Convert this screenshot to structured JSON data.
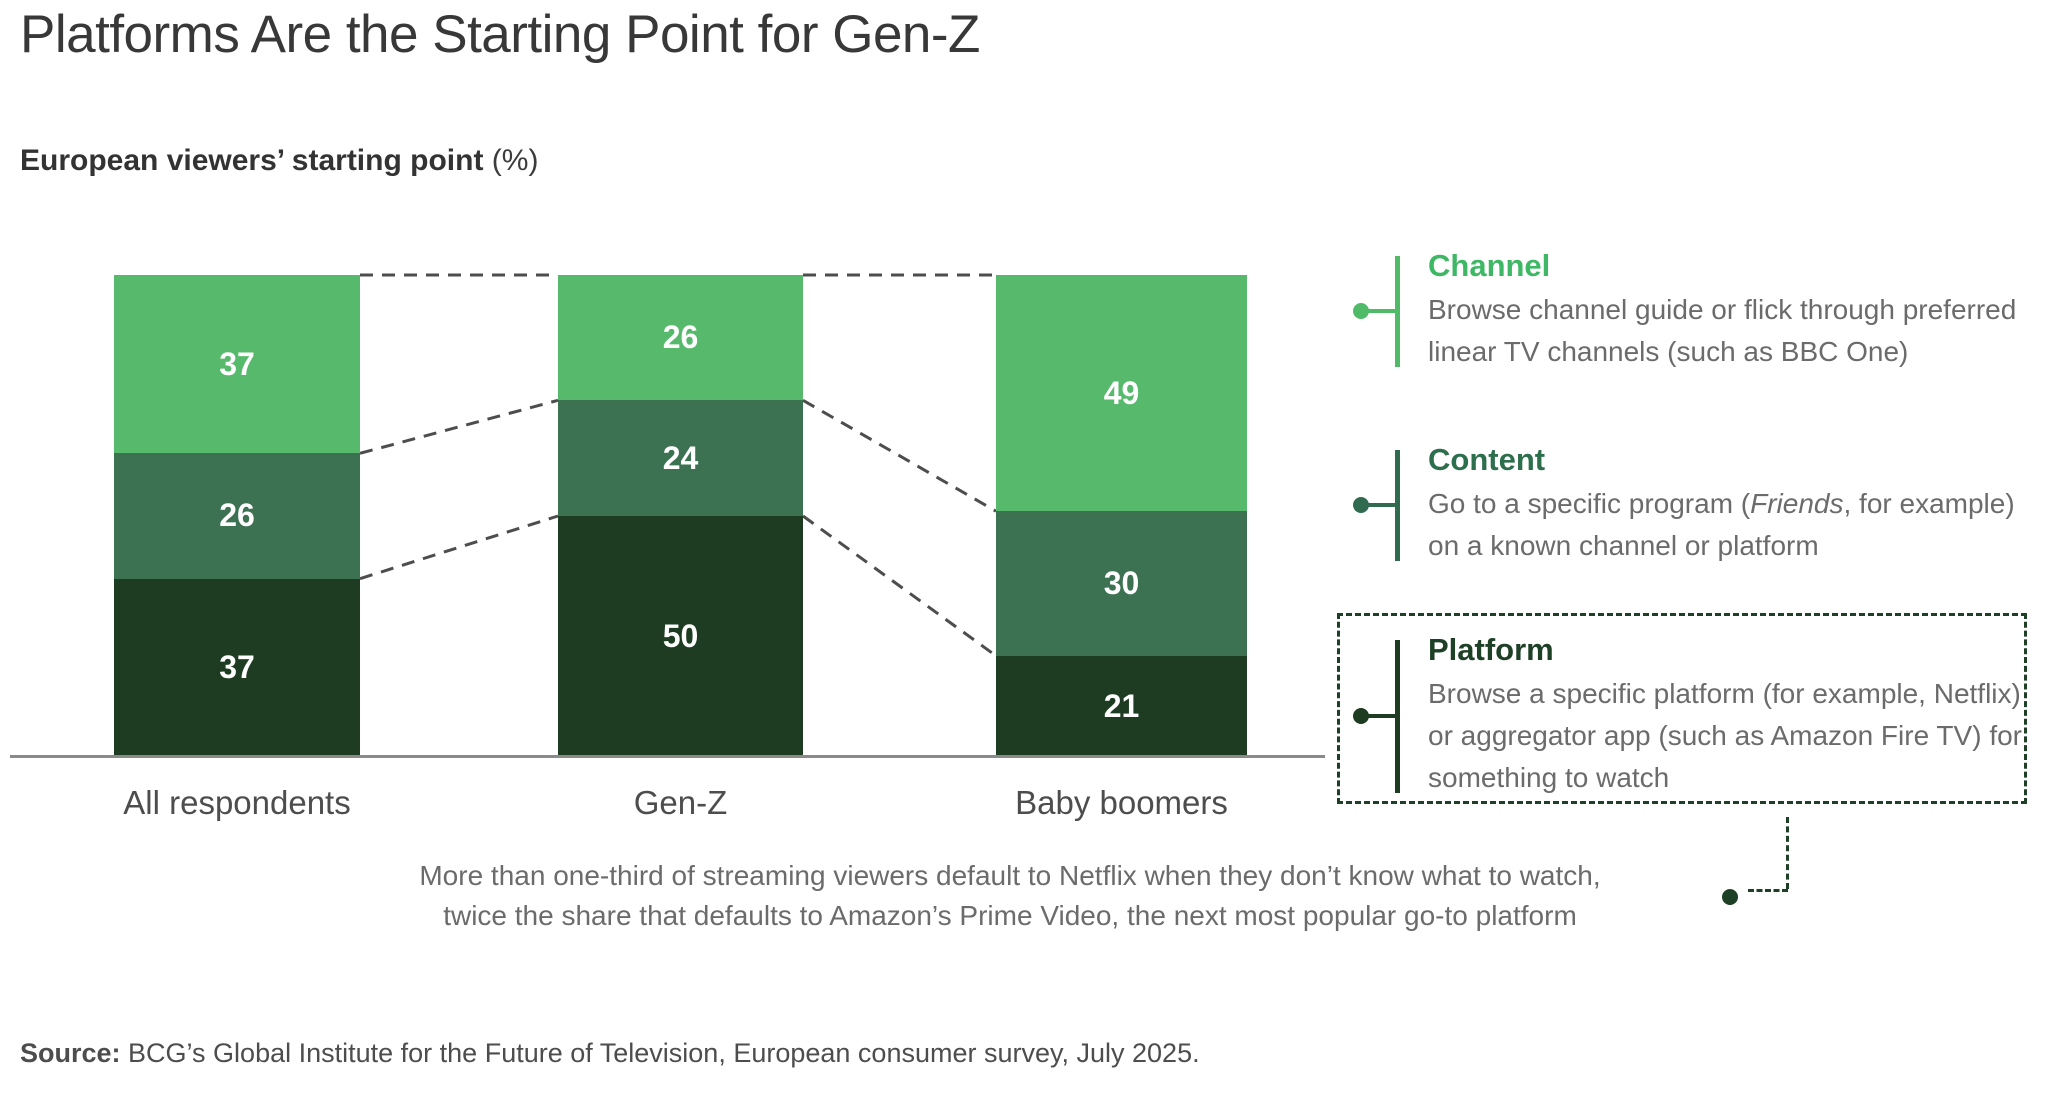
{
  "title": "Platforms Are the Starting Point for Gen-Z",
  "subtitle": {
    "text": "European viewers’ starting point",
    "unit": " (%)"
  },
  "chart_data": {
    "type": "bar",
    "stacked": true,
    "stack_order_top_to_bottom": [
      "Channel",
      "Content",
      "Platform"
    ],
    "categories": [
      "All respondents",
      "Gen-Z",
      "Baby boomers"
    ],
    "series": [
      {
        "name": "Channel",
        "color": "#57B96B",
        "values": [
          37,
          26,
          49
        ]
      },
      {
        "name": "Content",
        "color": "#3C7152",
        "values": [
          26,
          24,
          30
        ]
      },
      {
        "name": "Platform",
        "color": "#1E3C22",
        "values": [
          37,
          50,
          21
        ]
      }
    ],
    "value_unit": "%",
    "ylim": [
      0,
      100
    ],
    "grid": false,
    "legend_position": "right",
    "connector_lines": "dashed lines join segment boundaries of adjacent bars"
  },
  "legend": {
    "items": [
      {
        "title": "Channel",
        "title_color": "#3FB866",
        "marker_color": "#4FBB69",
        "desc_pre": "Browse channel guide or flick through preferred linear TV channels (such as BBC One)",
        "desc_italic": "",
        "desc_post": ""
      },
      {
        "title": "Content",
        "title_color": "#2D6F4D",
        "marker_color": "#306B50",
        "desc_pre": "Go to a specific program (",
        "desc_italic": "Friends",
        "desc_post": ", for example) on a known channel or platform"
      },
      {
        "title": "Platform",
        "title_color": "#1E4026",
        "marker_color": "#1E3C22",
        "desc_pre": "Browse a specific platform (for example, Netflix) or aggregator app (such as Amazon Fire TV) for something to watch",
        "desc_italic": "",
        "desc_post": ""
      }
    ]
  },
  "annotation": {
    "line1": "More than one-third of streaming viewers default to Netflix when they don’t know what to watch,",
    "line2": "twice the share that defaults to Amazon’s Prime Video, the next most popular go-to platform"
  },
  "source": {
    "label": "Source:",
    "text": " BCG’s Global Institute for the Future of Television, European consumer survey, July 2025."
  },
  "colors": {
    "background": "#FFFFFF",
    "title_text": "#383838",
    "body_text": "#6B6B6B",
    "axis_line": "#8A8A8A",
    "bar_connector_dash": "#4D4D4D",
    "callout_dash_green": "#1E4026",
    "value_label_text": "#FFFFFF"
  }
}
